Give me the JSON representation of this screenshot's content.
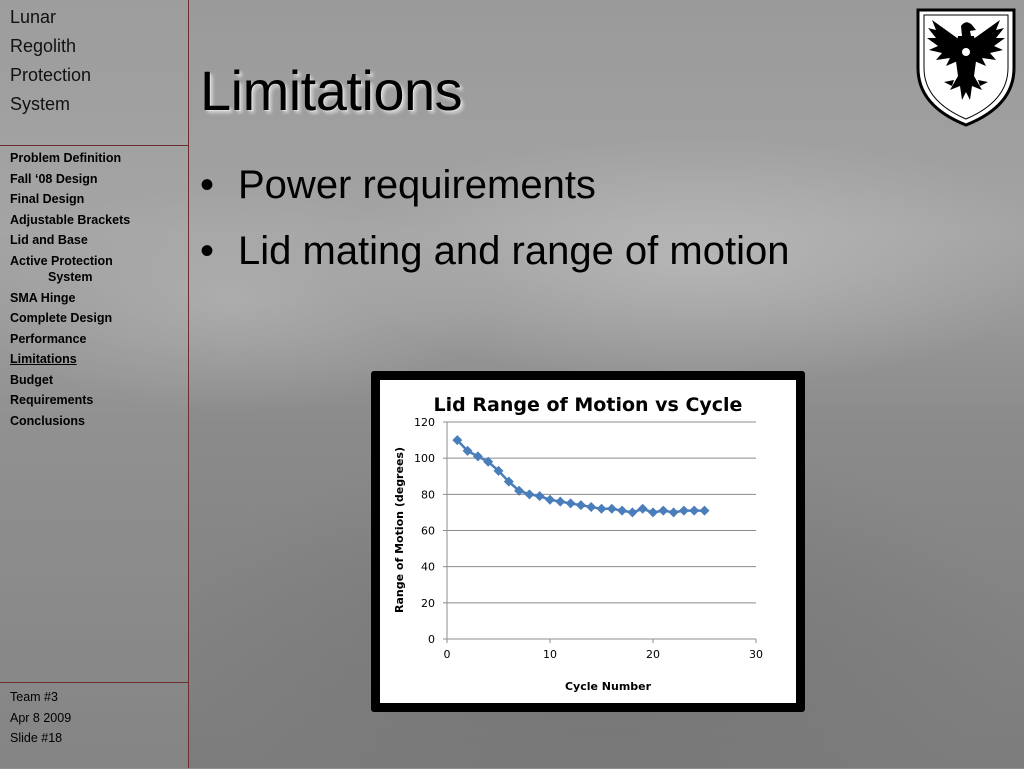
{
  "sidebar": {
    "title_lines": [
      "Lunar",
      "Regolith",
      "Protection",
      "System"
    ],
    "nav": [
      {
        "label": "Problem Definition"
      },
      {
        "label": "Fall ‘08 Design"
      },
      {
        "label": "Final Design"
      },
      {
        "label": "Adjustable Brackets"
      },
      {
        "label": "Lid and Base"
      },
      {
        "label": "Active Protection",
        "label2": "System"
      },
      {
        "label": "SMA Hinge"
      },
      {
        "label": "Complete Design"
      },
      {
        "label": "Performance"
      },
      {
        "label": "Limitations",
        "active": true
      },
      {
        "label": "Budget"
      },
      {
        "label": "Requirements"
      },
      {
        "label": "Conclusions"
      }
    ],
    "footer": {
      "team": "Team #3",
      "date": "Apr 8 2009",
      "slide": "Slide #18"
    }
  },
  "slide": {
    "title": "Limitations",
    "bullets": [
      "Power requirements",
      "Lid mating and range of motion"
    ],
    "bullet_glyph": "•"
  },
  "crest": {
    "icon": "eagle-shield-crest-icon"
  },
  "chart_data": {
    "type": "scatter",
    "title": "Lid Range of Motion vs Cycle",
    "xlabel": "Cycle Number",
    "ylabel": "Range of Motion (degrees)",
    "xlim": [
      0,
      30
    ],
    "ylim": [
      0,
      120
    ],
    "xticks": [
      0,
      10,
      20,
      30
    ],
    "yticks": [
      0,
      20,
      40,
      60,
      80,
      100,
      120
    ],
    "grid": "horizontal",
    "legend": "none",
    "series": [
      {
        "color": "#4a7ebb",
        "marker": "diamond",
        "line": true,
        "x": [
          1,
          2,
          3,
          4,
          5,
          6,
          7,
          8,
          9,
          10,
          11,
          12,
          13,
          14,
          15,
          16,
          17,
          18,
          19,
          20,
          21,
          22,
          23,
          24,
          25
        ],
        "y": [
          110,
          104,
          101,
          98,
          93,
          87,
          82,
          80,
          79,
          77,
          76,
          75,
          74,
          73,
          72,
          72,
          71,
          70,
          72,
          70,
          71,
          70,
          71,
          71,
          71
        ]
      }
    ]
  }
}
